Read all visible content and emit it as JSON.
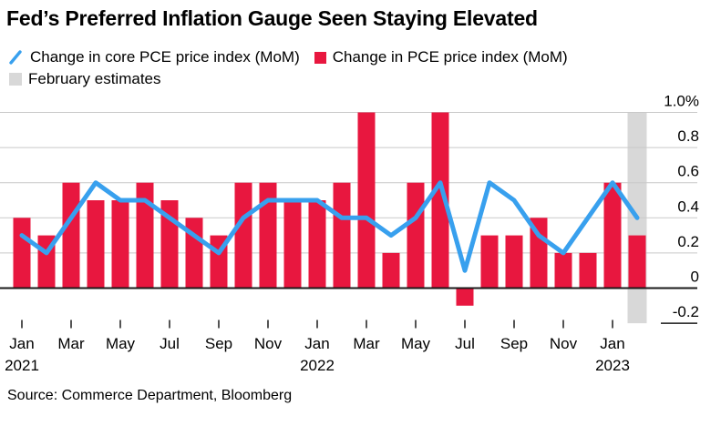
{
  "title": "Fed’s Preferred Inflation Gauge Seen Staying Elevated",
  "source": "Source: Commerce Department, Bloomberg",
  "colors": {
    "line": "#38a0ee",
    "bar": "#e8173f",
    "estimate_band": "#d8d8d8",
    "gridline": "#c9c9c9",
    "zero_line": "#1a1a1a",
    "text": "#000000"
  },
  "chart_data": {
    "type": "bar+line",
    "title": "Fed’s Preferred Inflation Gauge Seen Staying Elevated",
    "months": [
      "2021-01",
      "2021-02",
      "2021-03",
      "2021-04",
      "2021-05",
      "2021-06",
      "2021-07",
      "2021-08",
      "2021-09",
      "2021-10",
      "2021-11",
      "2021-12",
      "2022-01",
      "2022-02",
      "2022-03",
      "2022-04",
      "2022-05",
      "2022-06",
      "2022-07",
      "2022-08",
      "2022-09",
      "2022-10",
      "2022-11",
      "2022-12",
      "2023-01",
      "2023-02"
    ],
    "series": [
      {
        "name": "Change in core PCE price index (MoM)",
        "type": "line",
        "color": "#38a0ee",
        "values": [
          0.3,
          0.2,
          0.4,
          0.6,
          0.5,
          0.5,
          0.4,
          0.3,
          0.2,
          0.4,
          0.5,
          0.5,
          0.5,
          0.4,
          0.4,
          0.3,
          0.4,
          0.6,
          0.1,
          0.6,
          0.5,
          0.3,
          0.2,
          0.4,
          0.6,
          0.4
        ]
      },
      {
        "name": "Change in PCE price index (MoM)",
        "type": "bar",
        "color": "#e8173f",
        "values": [
          0.4,
          0.3,
          0.6,
          0.5,
          0.5,
          0.6,
          0.5,
          0.4,
          0.3,
          0.6,
          0.6,
          0.5,
          0.5,
          0.6,
          1.0,
          0.2,
          0.6,
          1.0,
          -0.1,
          0.3,
          0.3,
          0.4,
          0.2,
          0.2,
          0.6,
          0.3
        ]
      }
    ],
    "estimate_band": {
      "label": "February estimates",
      "month_index": 25,
      "month": "2023-02",
      "color": "#d8d8d8"
    },
    "y_axis": {
      "unit": "%",
      "range": [
        -0.2,
        1.0
      ],
      "ticks": [
        {
          "v": 1.0,
          "label": "1.0%"
        },
        {
          "v": 0.8,
          "label": "0.8"
        },
        {
          "v": 0.6,
          "label": "0.6"
        },
        {
          "v": 0.4,
          "label": "0.4"
        },
        {
          "v": 0.2,
          "label": "0.2"
        },
        {
          "v": 0,
          "label": "0"
        },
        {
          "v": -0.2,
          "label": "-0.2"
        }
      ]
    },
    "x_axis": {
      "ticks": [
        {
          "i": 0,
          "month": "Jan",
          "year": "2021"
        },
        {
          "i": 2,
          "month": "Mar"
        },
        {
          "i": 4,
          "month": "May"
        },
        {
          "i": 6,
          "month": "Jul"
        },
        {
          "i": 8,
          "month": "Sep"
        },
        {
          "i": 10,
          "month": "Nov"
        },
        {
          "i": 12,
          "month": "Jan",
          "year": "2022"
        },
        {
          "i": 14,
          "month": "Mar"
        },
        {
          "i": 16,
          "month": "May"
        },
        {
          "i": 18,
          "month": "Jul"
        },
        {
          "i": 20,
          "month": "Sep"
        },
        {
          "i": 22,
          "month": "Nov"
        },
        {
          "i": 24,
          "month": "Jan",
          "year": "2023"
        }
      ]
    },
    "legend_position": "top-left",
    "grid": "horizontal"
  }
}
